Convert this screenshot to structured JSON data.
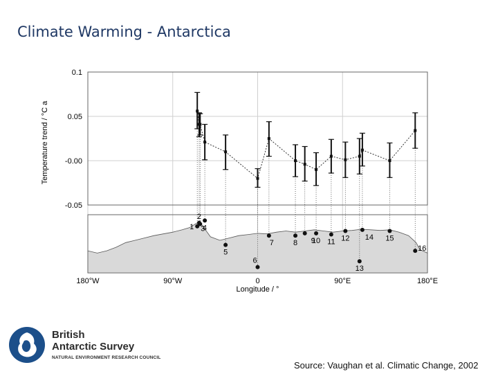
{
  "title": "Climate Warming - Antarctica",
  "logo": {
    "name_line1": "British",
    "name_line2": "Antarctic Survey",
    "subtitle": "NATURAL ENVIRONMENT RESEARCH COUNCIL"
  },
  "source": "Source: Vaughan et al. Climatic Change, 2002",
  "colors": {
    "title": "#1f3864",
    "logo_blue": "#1c4f8a",
    "land": "#d9d9d9"
  },
  "chart_data": {
    "type": "scatter",
    "title": "",
    "ylabel": "Temperature trend / °C a",
    "xlabel": "Longitude / °",
    "ylim": [
      -0.05,
      0.1
    ],
    "yticks": [
      0.1,
      0.05,
      -0.0,
      -0.05
    ],
    "ytick_labels": [
      "0.1",
      "0.05",
      "-0.00",
      "-0.05"
    ],
    "xlim": [
      -180,
      180
    ],
    "xticks": [
      -180,
      -90,
      0,
      90,
      180
    ],
    "xtick_labels": [
      "180°W",
      "90°W",
      "0",
      "90°E",
      "180°E"
    ],
    "grid": true,
    "series": [
      {
        "points": [
          {
            "id": "1",
            "lon": -64,
            "trend": 0.056,
            "low": 0.036,
            "high": 0.077
          },
          {
            "id": "2",
            "lon": -62,
            "trend": 0.041,
            "low": 0.027,
            "high": 0.054
          },
          {
            "id": "3",
            "lon": -61,
            "trend": 0.041,
            "low": 0.029,
            "high": 0.053
          },
          {
            "id": "4",
            "lon": -56,
            "trend": 0.021,
            "low": 0.001,
            "high": 0.041
          },
          {
            "id": "5",
            "lon": -34,
            "trend": 0.01,
            "low": -0.01,
            "high": 0.029
          },
          {
            "id": "6",
            "lon": 0,
            "trend": -0.02,
            "low": -0.03,
            "high": -0.009
          },
          {
            "id": "7",
            "lon": 12,
            "trend": 0.025,
            "low": 0.005,
            "high": 0.044
          },
          {
            "id": "8",
            "lon": 40,
            "trend": 0.0,
            "low": -0.018,
            "high": 0.018
          },
          {
            "id": "9",
            "lon": 50,
            "trend": -0.004,
            "low": -0.023,
            "high": 0.016
          },
          {
            "id": "10",
            "lon": 62,
            "trend": -0.01,
            "low": -0.028,
            "high": 0.009
          },
          {
            "id": "11",
            "lon": 78,
            "trend": 0.005,
            "low": -0.014,
            "high": 0.024
          },
          {
            "id": "12",
            "lon": 93,
            "trend": 0.001,
            "low": -0.019,
            "high": 0.021
          },
          {
            "id": "13",
            "lon": 108,
            "trend": 0.005,
            "low": -0.015,
            "high": 0.025
          },
          {
            "id": "14",
            "lon": 111,
            "trend": 0.012,
            "low": -0.006,
            "high": 0.031
          },
          {
            "id": "15",
            "lon": 140,
            "trend": 0.0,
            "low": -0.019,
            "high": 0.02
          },
          {
            "id": "16",
            "lon": 167,
            "trend": 0.034,
            "low": 0.014,
            "high": 0.054
          }
        ]
      }
    ],
    "stations": [
      {
        "id": "1",
        "lon": -64
      },
      {
        "id": "2",
        "lon": -62
      },
      {
        "id": "3",
        "lon": -61
      },
      {
        "id": "4",
        "lon": -56
      },
      {
        "id": "5",
        "lon": -34
      },
      {
        "id": "6",
        "lon": 0
      },
      {
        "id": "7",
        "lon": 12
      },
      {
        "id": "8",
        "lon": 40
      },
      {
        "id": "9",
        "lon": 50
      },
      {
        "id": "10",
        "lon": 62
      },
      {
        "id": "11",
        "lon": 78
      },
      {
        "id": "12",
        "lon": 93
      },
      {
        "id": "13",
        "lon": 108
      },
      {
        "id": "14",
        "lon": 111
      },
      {
        "id": "15",
        "lon": 140
      },
      {
        "id": "16",
        "lon": 167
      }
    ]
  }
}
